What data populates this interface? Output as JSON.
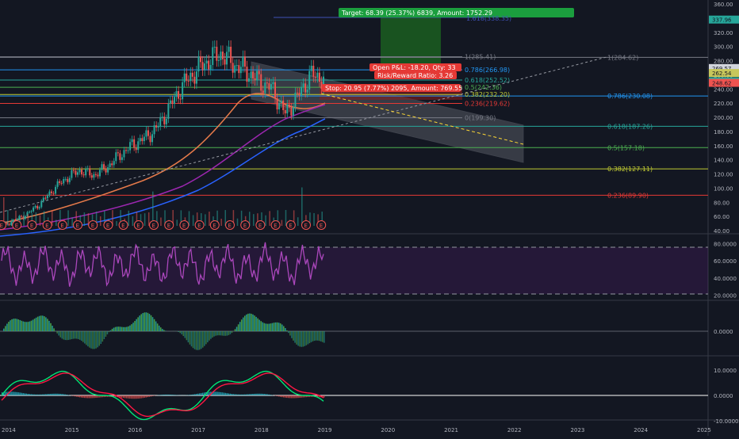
{
  "chart_data": {
    "type": "line",
    "x_axis": {
      "ticks": [
        "2014",
        "2015",
        "2016",
        "2017",
        "2018",
        "2019",
        "2020",
        "2021",
        "2022",
        "2023",
        "2024",
        "2025"
      ]
    },
    "y_axis": {
      "range": [
        40,
        360
      ],
      "ticks": [
        "360.00",
        "340.00",
        "320.00",
        "300.00",
        "280.00",
        "260.00",
        "240.00",
        "220.00",
        "200.00",
        "180.00",
        "160.00",
        "140.00",
        "120.00",
        "100.00",
        "80.00",
        "60.00",
        "40.00"
      ]
    },
    "price_markers": [
      {
        "text": "337.96",
        "value": 337.96,
        "color": "#26a69a"
      },
      {
        "text": "269.57",
        "value": 269.57,
        "color": "#d1d4dc"
      },
      {
        "text": "262.54",
        "value": 262.54,
        "color": "#c7c75b"
      },
      {
        "text": "250.87",
        "value": 250.87,
        "color": "#26a69a"
      },
      {
        "text": "248.62",
        "value": 248.62,
        "color": "#ef5350"
      }
    ],
    "fib_levels": [
      {
        "label": "0.786(230.08)",
        "value": 230.08,
        "color": "#2196f3"
      },
      {
        "label": "0.618(187.26)",
        "value": 187.26,
        "color": "#26a69a"
      },
      {
        "label": "0.5(157.18)",
        "value": 157.18,
        "color": "#4caf50"
      },
      {
        "label": "0.382(127.11)",
        "value": 127.11,
        "color": "#c0ca33"
      },
      {
        "label": "0.236(89.90)",
        "value": 89.9,
        "color": "#e53935"
      },
      {
        "label": "1(284.62)",
        "value": 284.62,
        "color": "#787b86"
      }
    ],
    "fib_levels_2": [
      {
        "label": "1(285.41)",
        "value": 285.41,
        "color": "#787b86"
      },
      {
        "label": "0.786(266.98)",
        "value": 266.98,
        "color": "#2196f3"
      },
      {
        "label": "0.618(252.52)",
        "value": 252.52,
        "color": "#26a69a"
      },
      {
        "label": "0.5(242.36)",
        "value": 242.36,
        "color": "#4caf50"
      },
      {
        "label": "0.382(232.20)",
        "value": 232.2,
        "color": "#c0ca33"
      },
      {
        "label": "0.236(219.62)",
        "value": 219.62,
        "color": "#e53935"
      },
      {
        "label": "0(199.30)",
        "value": 199.3,
        "color": "#787b86"
      }
    ],
    "fib_top_label": "1.618(338.35)",
    "trade": {
      "target": "Target: 68.39 (25.37%) 6839, Amount: 1752.29",
      "open_pl": "Open P&L: -18.20, Qty: 33",
      "rr": "Risk/Reward Ratio: 3.26",
      "stop": "Stop: 20.95 (7.77%) 2095, Amount: 769.55"
    },
    "earnings_label": "E",
    "rsi": {
      "ticks": [
        "80.0000",
        "60.0000",
        "40.0000",
        "20.0000"
      ],
      "upper": 80,
      "lower": 20
    },
    "macd_hist": {
      "ticks": [
        "0.0000"
      ]
    },
    "macd": {
      "ticks": [
        "10.0000",
        "0.0000",
        "-10.0000"
      ]
    },
    "series": [
      {
        "name": "",
        "x": [
          "2014-01",
          "2014-04",
          "2014-07",
          "2014-10",
          "2015-01",
          "2015-04",
          "2015-07",
          "2015-10",
          "2016-01",
          "2016-04",
          "2016-07",
          "2016-10",
          "2017-01",
          "2017-03",
          "2017-05",
          "2017-07",
          "2017-09",
          "2017-11",
          "2018-01",
          "2018-03",
          "2018-05",
          "2018-07",
          "2018-09",
          "2018-10",
          "2018-12",
          "2019-01"
        ],
        "values": [
          48,
          55,
          65,
          80,
          100,
          115,
          125,
          118,
          128,
          145,
          160,
          170,
          185,
          215,
          245,
          265,
          280,
          290,
          275,
          265,
          250,
          240,
          205,
          230,
          260,
          255
        ]
      }
    ]
  }
}
